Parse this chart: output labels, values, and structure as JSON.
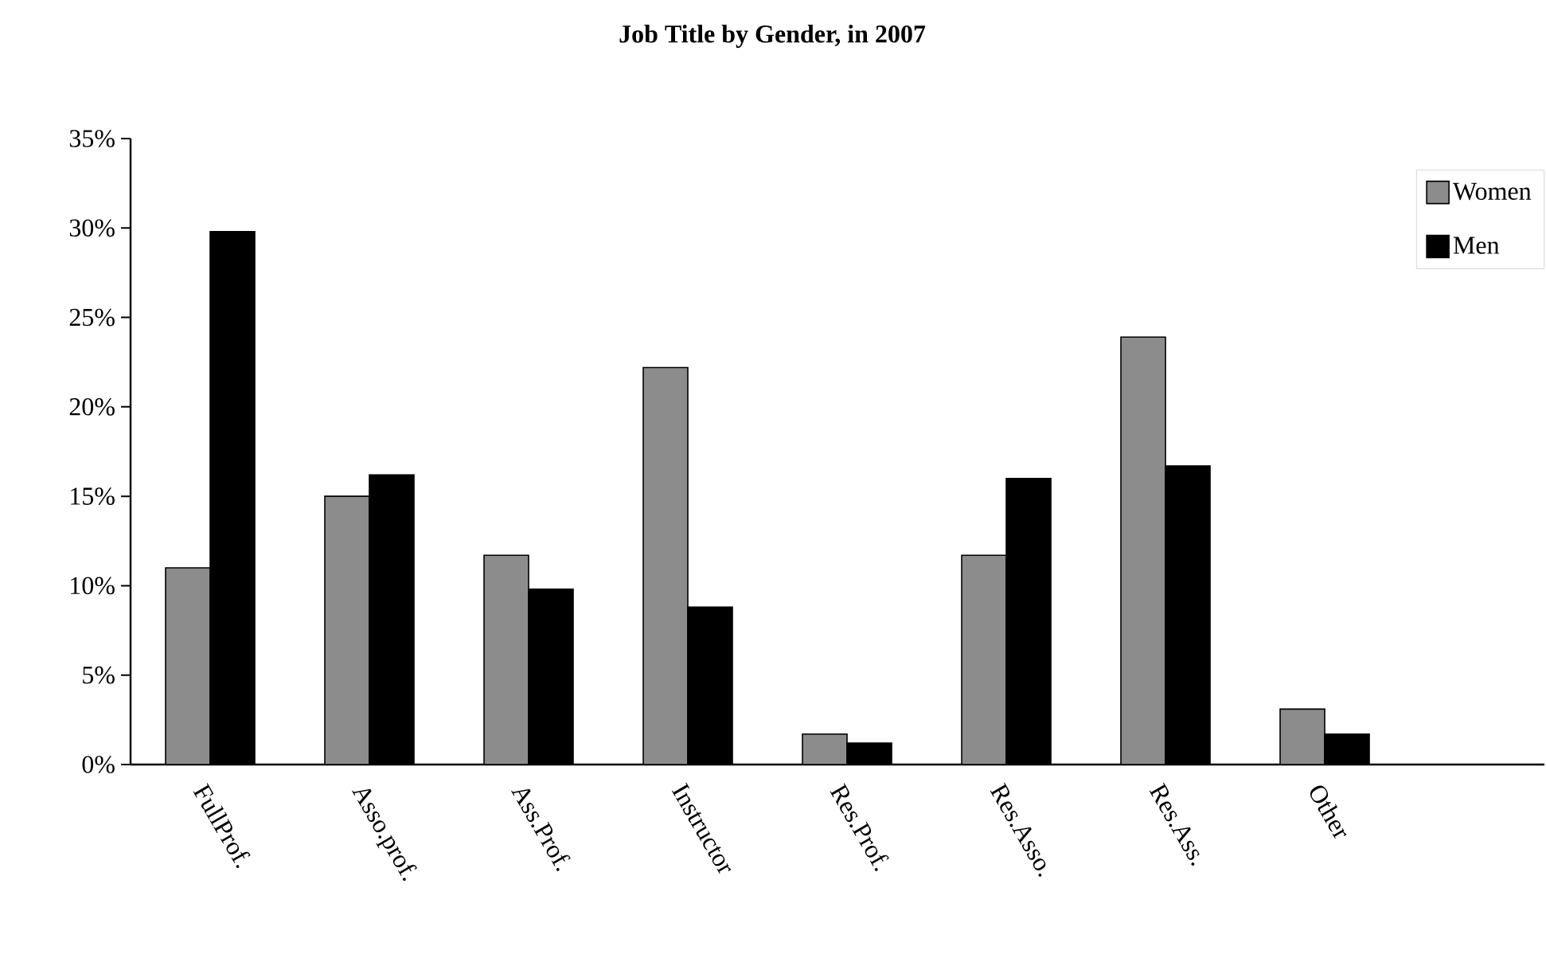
{
  "chart_data": {
    "type": "bar",
    "title": "Job Title by Gender, in 2007",
    "categories": [
      "FullProf.",
      "Asso.prof.",
      "Ass.Prof.",
      "Instructor",
      "Res.Prof.",
      "Res.Asso.",
      "Res.Ass.",
      "Other",
      null
    ],
    "series": [
      {
        "name": "Women",
        "color": "#8c8c8c",
        "values": [
          11.0,
          15.0,
          11.7,
          22.2,
          1.7,
          11.7,
          23.9,
          3.1,
          null
        ]
      },
      {
        "name": "Men",
        "color": "#000000",
        "values": [
          29.8,
          16.2,
          9.8,
          8.8,
          1.2,
          16.0,
          16.7,
          1.7,
          null
        ]
      }
    ],
    "ylim": [
      0,
      35
    ],
    "yticks": [
      {
        "value": 0,
        "label": "0%"
      },
      {
        "value": 5,
        "label": "5%"
      },
      {
        "value": 10,
        "label": "10%"
      },
      {
        "value": 15,
        "label": "15%"
      },
      {
        "value": 20,
        "label": "20%"
      },
      {
        "value": 25,
        "label": "25%"
      },
      {
        "value": 30,
        "label": "30%"
      },
      {
        "value": 35,
        "label": "35%"
      }
    ],
    "grid": false,
    "legend": "top right"
  }
}
